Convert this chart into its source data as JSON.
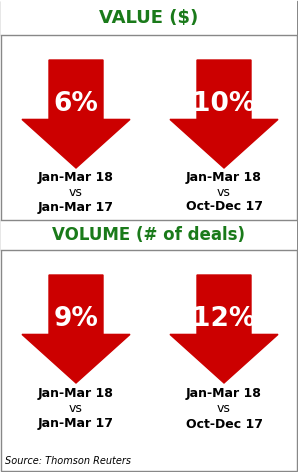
{
  "title1": "VALUE ($)",
  "title2": "VOLUME (# of deals)",
  "section1": {
    "left": {
      "pct": "6%",
      "line1": "Jan-Mar 18",
      "line2": "vs",
      "line3": "Jan-Mar 17"
    },
    "right": {
      "pct": "10%",
      "line1": "Jan-Mar 18",
      "line2": "vs",
      "line3": "Oct-Dec 17"
    }
  },
  "section2": {
    "left": {
      "pct": "9%",
      "line1": "Jan-Mar 18",
      "line2": "vs",
      "line3": "Jan-Mar 17"
    },
    "right": {
      "pct": "12%",
      "line1": "Jan-Mar 18",
      "line2": "vs",
      "line3": "Oct-Dec 17"
    }
  },
  "source": "Source: Thomson Reuters",
  "arrow_color": "#CC0000",
  "title_color": "#1a7a1a",
  "pct_color": "#FFFFFF",
  "label_color": "#000000",
  "bg_color": "#FFFFFF",
  "border_color": "#888888"
}
